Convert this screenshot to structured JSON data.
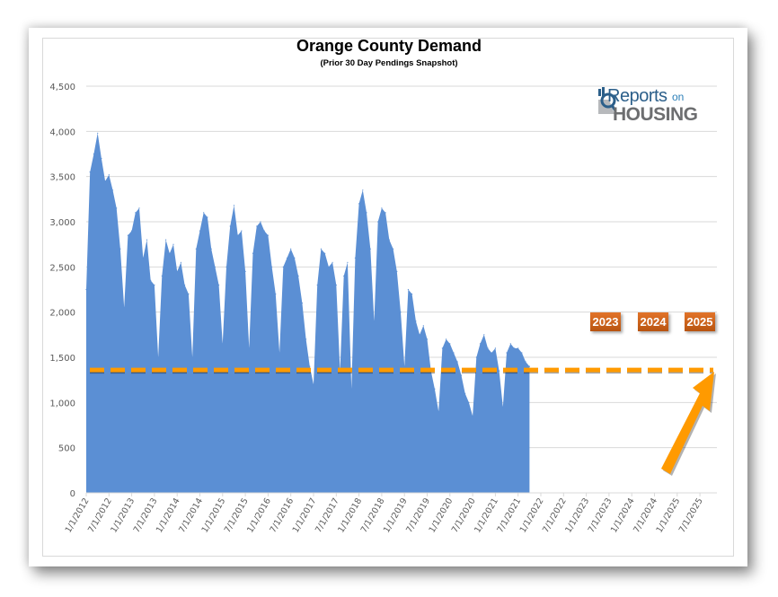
{
  "chart_data": {
    "type": "area",
    "title": "Orange County Demand",
    "subtitle": "(Prior 30 Day Pendings Snapshot)",
    "xlabel": "",
    "ylabel": "",
    "ylim": [
      0,
      4500
    ],
    "yticks": [
      0,
      500,
      1000,
      1500,
      2000,
      2500,
      3000,
      3500,
      4000,
      4500
    ],
    "ytick_labels": [
      "0",
      "500",
      "1,000",
      "1,500",
      "2,000",
      "2,500",
      "3,000",
      "3,500",
      "4,000",
      "4,500"
    ],
    "xtick_labels": [
      "1/1/2012",
      "7/1/2012",
      "1/1/2013",
      "7/1/2013",
      "1/1/2014",
      "7/1/2014",
      "1/1/2015",
      "7/1/2015",
      "1/1/2016",
      "7/1/2016",
      "1/1/2017",
      "7/1/2017",
      "1/1/2018",
      "7/1/2018",
      "1/1/2019",
      "7/1/2019",
      "1/1/2020",
      "7/1/2020",
      "1/1/2021",
      "7/1/2021",
      "1/1/2022",
      "7/1/2022",
      "1/1/2023",
      "7/1/2023",
      "1/1/2024",
      "7/1/2024",
      "1/1/2025",
      "7/1/2025"
    ],
    "grid": true,
    "legend": "none",
    "series": [
      {
        "name": "Pendings (prior 30 days)",
        "color": "#5b8fd4",
        "x_start": "1/1/2012",
        "x_step": "month",
        "values": [
          2250,
          3550,
          3750,
          3980,
          3700,
          3450,
          3520,
          3350,
          3150,
          2700,
          2050,
          2850,
          2900,
          3100,
          3150,
          2600,
          2800,
          2350,
          2300,
          1500,
          2400,
          2800,
          2650,
          2750,
          2450,
          2550,
          2300,
          2200,
          1500,
          2700,
          2900,
          3100,
          3050,
          2700,
          2500,
          2300,
          1650,
          2500,
          2950,
          3180,
          2850,
          2900,
          2450,
          1600,
          2650,
          2950,
          3000,
          2900,
          2850,
          2500,
          2200,
          1550,
          2500,
          2600,
          2700,
          2600,
          2400,
          2100,
          1700,
          1400,
          1200,
          2300,
          2700,
          2650,
          2500,
          2550,
          2300,
          1350,
          2400,
          2550,
          1150,
          2600,
          3200,
          3350,
          3100,
          2700,
          1900,
          3000,
          3150,
          3100,
          2800,
          2700,
          2450,
          2000,
          1400,
          2250,
          2200,
          1900,
          1750,
          1850,
          1700,
          1350,
          1150,
          900,
          1600,
          1700,
          1650,
          1550,
          1450,
          1300,
          1100,
          1000,
          850,
          1500,
          1650,
          1750,
          1600,
          1550,
          1600,
          1350,
          950,
          1550,
          1650,
          1600,
          1600,
          1550,
          1450,
          1400
        ]
      }
    ],
    "reference_line": {
      "label": "",
      "value": 1360,
      "style": "dashed",
      "color": "#ff9a00"
    },
    "annotations": [
      {
        "text": "2023",
        "x": "7/1/2023"
      },
      {
        "text": "2024",
        "x": "7/1/2024"
      },
      {
        "text": "2025",
        "x": "7/1/2025"
      }
    ],
    "arrow": {
      "color": "#ff9a00",
      "points_to": "latest value"
    }
  },
  "logo": {
    "line1": "Reports",
    "line1_suffix": "on",
    "line2": "HOUSING"
  },
  "colors": {
    "area_fill": "#5b8fd4",
    "gridline": "#d9d9d9",
    "reference_line": "#ff9a00",
    "badge": "#c8611a"
  }
}
